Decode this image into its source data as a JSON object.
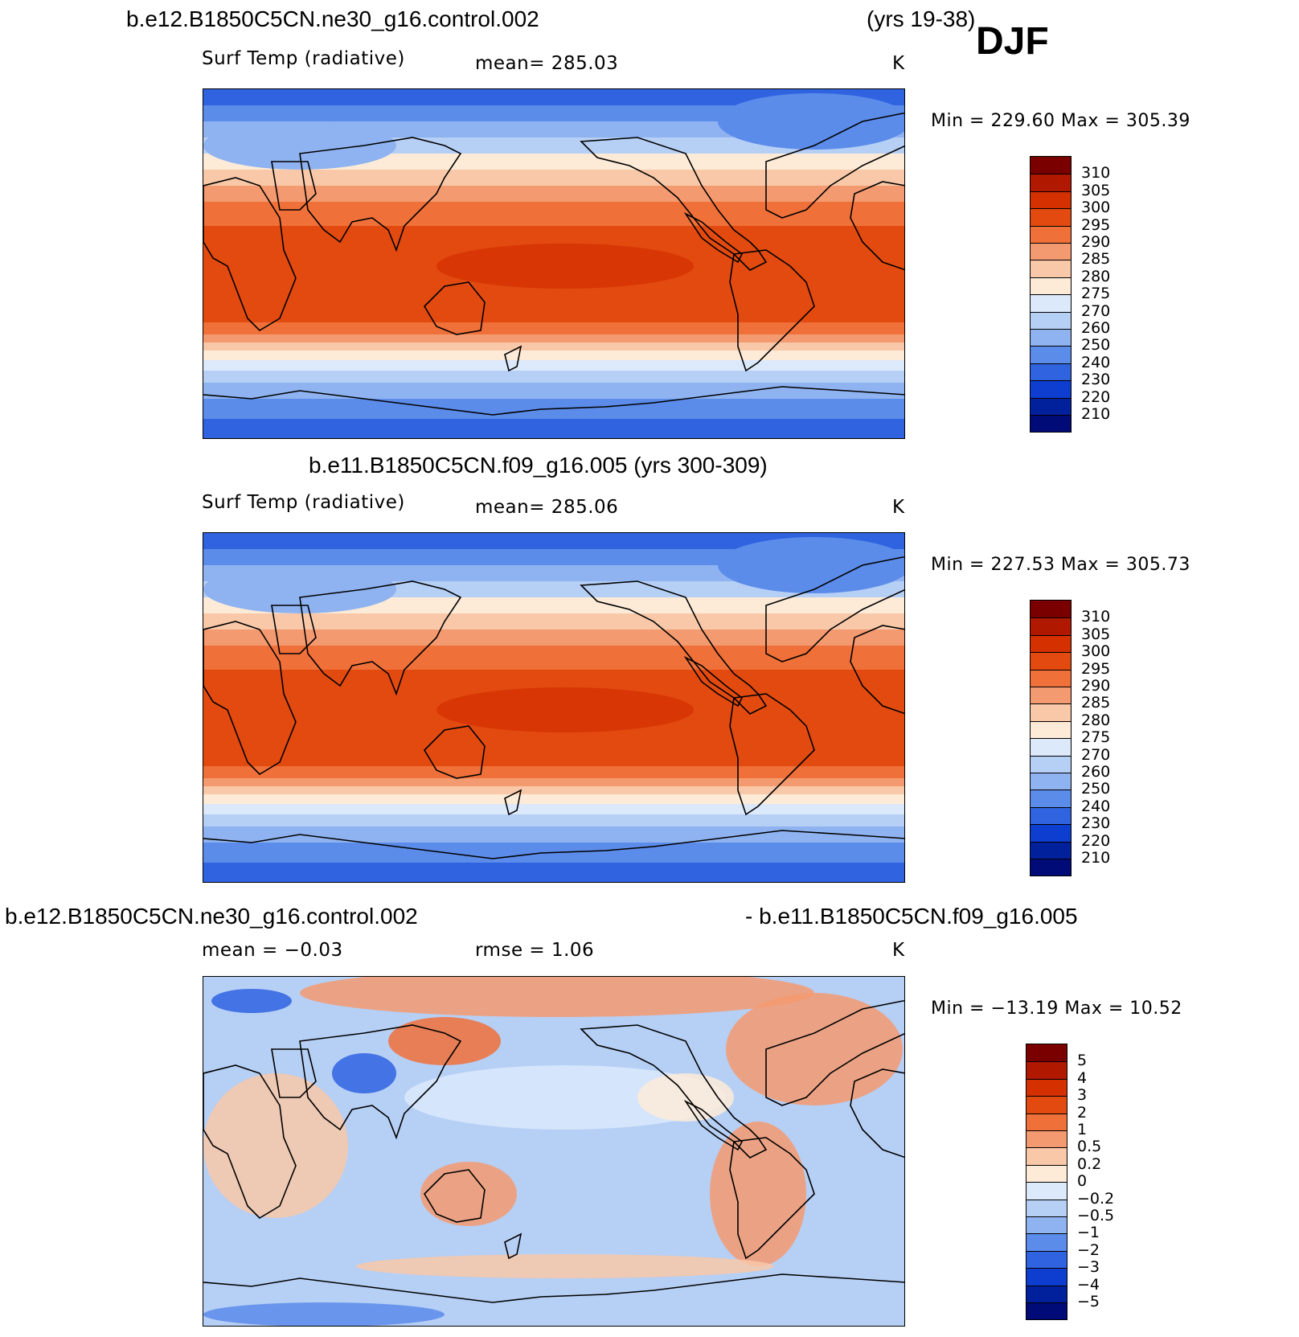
{
  "season": "DJF",
  "panels": [
    {
      "id": "p1",
      "title": "b.e12.B1850C5CN.ne30_g16.control.002",
      "title_years": "(yrs 19-38)",
      "variable": "Surf Temp (radiative)",
      "stat_text": "mean=  285.03",
      "units": "K",
      "minmax": "Min =  229.60  Max =  305.39",
      "colorbar_labels": [
        "310",
        "305",
        "300",
        "295",
        "290",
        "285",
        "280",
        "275",
        "270",
        "260",
        "250",
        "240",
        "230",
        "220",
        "210"
      ]
    },
    {
      "id": "p2",
      "title": "b.e11.B1850C5CN.f09_g16.005 (yrs 300-309)",
      "variable": "Surf Temp (radiative)",
      "stat_text": "mean=  285.06",
      "units": "K",
      "minmax": "Min =  227.53  Max =  305.73",
      "colorbar_labels": [
        "310",
        "305",
        "300",
        "295",
        "290",
        "285",
        "280",
        "275",
        "270",
        "260",
        "250",
        "240",
        "230",
        "220",
        "210"
      ]
    },
    {
      "id": "p3",
      "title_left": "b.e12.B1850C5CN.ne30_g16.control.002",
      "title_right": "- b.e11.B1850C5CN.f09_g16.005",
      "stat_mean": "mean =   −0.03",
      "stat_rmse": "rmse =     1.06",
      "units": "K",
      "minmax": "Min =  −13.19  Max =    10.52",
      "colorbar_labels": [
        "5",
        "4",
        "3",
        "2",
        "1",
        "0.5",
        "0.2",
        "0",
        "−0.2",
        "−0.5",
        "−1",
        "−2",
        "−3",
        "−4",
        "−5"
      ]
    }
  ],
  "colors": {
    "temp_scale": [
      "#7a0000",
      "#b01800",
      "#d43000",
      "#e24a10",
      "#f0703a",
      "#f49a70",
      "#f8c8a8",
      "#fdebd8",
      "#dbe9fb",
      "#b6cff5",
      "#8fb3f0",
      "#5c8cea",
      "#2f63e0",
      "#0e3ed0",
      "#00209c",
      "#000b78"
    ],
    "diff_scale": [
      "#7a0000",
      "#b01800",
      "#d43000",
      "#e24a10",
      "#f0703a",
      "#f49a70",
      "#f8c8a8",
      "#fdebd8",
      "#dbe9fb",
      "#b6cff5",
      "#8fb3f0",
      "#5c8cea",
      "#2f63e0",
      "#0e3ed0",
      "#00209c",
      "#000b78"
    ]
  }
}
